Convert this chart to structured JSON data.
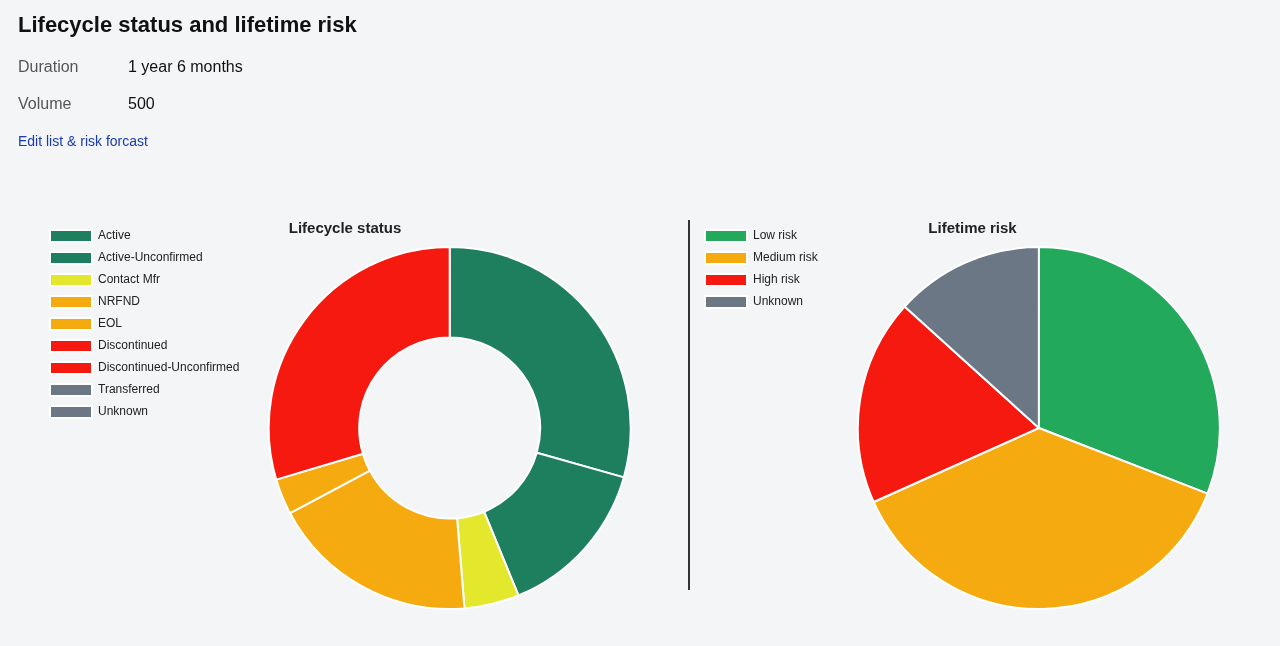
{
  "chart_data": [
    {
      "type": "other",
      "title": "Lifecycle status and lifetime risk",
      "annotations": [
        "Duration",
        "1 year 6 months",
        "Volume",
        "500",
        "Edit list & risk forcast"
      ]
    },
    {
      "type": "donut",
      "title": "Lifecycle status",
      "legend": "left",
      "categories": [
        "Active",
        "Active-Unconfirmed",
        "Contact Mfr",
        "NRFND",
        "EOL",
        "Discontinued",
        "Discontinued-Unconfirmed",
        "Transferred",
        "Unknown"
      ],
      "values": [
        29.4,
        14.4,
        4.9,
        18.5,
        3.2,
        29.6,
        0,
        0,
        0
      ],
      "colors": [
        "#1e7f5f",
        "#1e7f5f",
        "#e3e82c",
        "#f5ab0f",
        "#f5ab0f",
        "#f5190f",
        "#f5190f",
        "#6b7784",
        "#6b7784"
      ]
    },
    {
      "type": "pie",
      "title": "Lifetime risk",
      "legend": "left",
      "categories": [
        "Low risk",
        "Medium risk",
        "High risk",
        "Unknown"
      ],
      "values": [
        30.9,
        37.4,
        18.4,
        13.3
      ],
      "colors": [
        "#22a95b",
        "#f5ab0f",
        "#f5190f",
        "#6b7784"
      ]
    }
  ]
}
